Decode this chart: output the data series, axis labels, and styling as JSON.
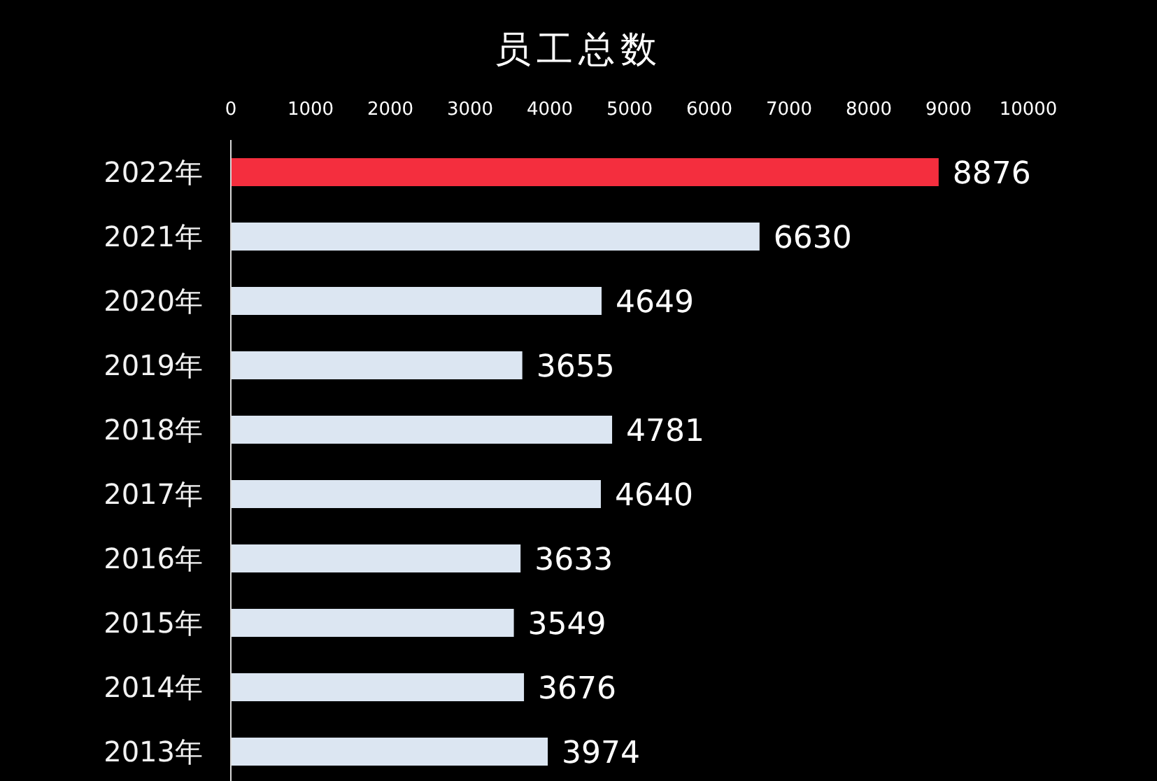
{
  "chart_data": {
    "type": "bar",
    "orientation": "horizontal",
    "title": "员工总数",
    "categories": [
      "2022年",
      "2021年",
      "2020年",
      "2019年",
      "2018年",
      "2017年",
      "2016年",
      "2015年",
      "2014年",
      "2013年"
    ],
    "values": [
      8876,
      6630,
      4649,
      3655,
      4781,
      4640,
      3633,
      3549,
      3676,
      3974
    ],
    "colors": [
      "#f42e3e",
      "#dce6f2",
      "#dce6f2",
      "#dce6f2",
      "#dce6f2",
      "#dce6f2",
      "#dce6f2",
      "#dce6f2",
      "#dce6f2",
      "#dce6f2"
    ],
    "xlim": [
      0,
      10000
    ],
    "xticks": [
      0,
      1000,
      2000,
      3000,
      4000,
      5000,
      6000,
      7000,
      8000,
      9000,
      10000
    ],
    "data_labels": true
  }
}
